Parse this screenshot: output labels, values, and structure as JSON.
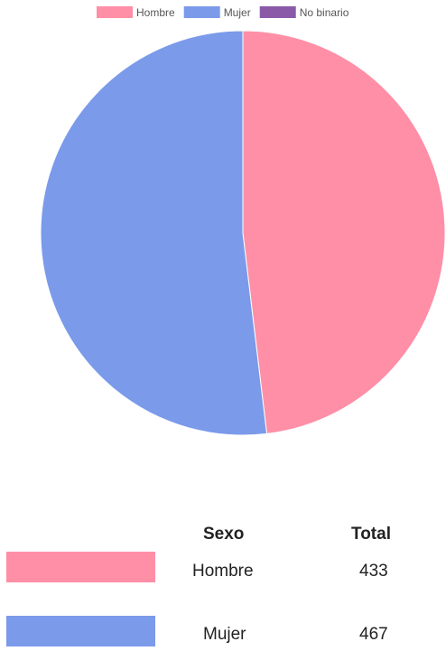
{
  "chart_data": {
    "type": "pie",
    "categories": [
      "Hombre",
      "Mujer",
      "No binario"
    ],
    "values": [
      433,
      467,
      0
    ],
    "colors": [
      "#ff8fa6",
      "#7b9aea",
      "#8a5aa8"
    ],
    "legend_position": "top",
    "start_angle": "top, clockwise"
  },
  "table": {
    "headers": {
      "sexo": "Sexo",
      "total": "Total"
    },
    "rows": [
      {
        "sexo": "Hombre",
        "total": "433",
        "color": "#ff8fa6"
      },
      {
        "sexo": "Mujer",
        "total": "467",
        "color": "#7b9aea"
      }
    ]
  }
}
